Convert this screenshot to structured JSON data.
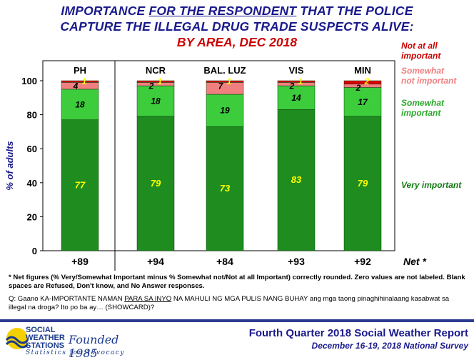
{
  "title": {
    "line1_a": "IMPORTANCE ",
    "line1_b": "FOR THE RESPONDENT",
    "line1_c": " THAT THE POLICE",
    "line2": "CAPTURE THE ILLEGAL DRUG TRADE SUSPECTS ALIVE:",
    "line3": "BY AREA, DEC 2018"
  },
  "chart_data": {
    "type": "bar",
    "stacked": true,
    "categories": [
      "PH",
      "NCR",
      "BAL. LUZ",
      "VIS",
      "MIN"
    ],
    "series": [
      {
        "name": "Very important",
        "values": [
          77,
          79,
          73,
          83,
          79
        ],
        "color": "#1e8c1e",
        "label_color": "#ffff00"
      },
      {
        "name": "Somewhat important",
        "values": [
          18,
          18,
          19,
          14,
          17
        ],
        "color": "#3ccc3c",
        "label_color": "#000000"
      },
      {
        "name": "Somewhat not important",
        "values": [
          4,
          2,
          7,
          2,
          2
        ],
        "color": "#f08080",
        "label_color": "#000000"
      },
      {
        "name": "Not at all important",
        "values": [
          1,
          1,
          1,
          1,
          2
        ],
        "color": "#dd0000",
        "label_color": "#ffff00"
      }
    ],
    "ylabel": "% of adults",
    "ylim": [
      0,
      100
    ],
    "yticks": [
      "0",
      "20",
      "40",
      "60",
      "80",
      "100"
    ],
    "net_label": "Net *",
    "net_values": [
      "+89",
      "+94",
      "+84",
      "+93",
      "+92"
    ],
    "legend_placement": "right",
    "legend": [
      {
        "label": "Not at all important",
        "color": "#cc0000"
      },
      {
        "label": "Somewhat not important",
        "color": "#f08080"
      },
      {
        "label": "Somewhat important",
        "color": "#2aa82a"
      },
      {
        "label": "Very important",
        "color": "#127a12"
      }
    ]
  },
  "footnote": {
    "net_note": "* Net figures (% Very/Somewhat Important minus % Somewhat not/Not at all Important) correctly rounded. Zero values are not labeled. Blank spaces are Refused, Don't know, and No Answer responses.",
    "question_a": "Q: Gaano KA-IMPORTANTE NAMAN ",
    "question_b": "PARA SA INYO",
    "question_c": " NA MAHULI NG MGA PULIS NANG BUHAY ang mga taong pinaghihinalaang kasabwat sa illegal na droga? Ito po ba ay… (SHOWCARD)?"
  },
  "footer": {
    "logo_line1": "SOCIAL",
    "logo_line2": "WEATHER",
    "logo_line3": "STATIONS",
    "logo_founded": "Founded 1985",
    "logo_tagline": "Statistics for Advocacy",
    "report_title": "Fourth Quarter 2018 Social Weather Report",
    "report_sub": "December 16-19, 2018 National Survey"
  }
}
